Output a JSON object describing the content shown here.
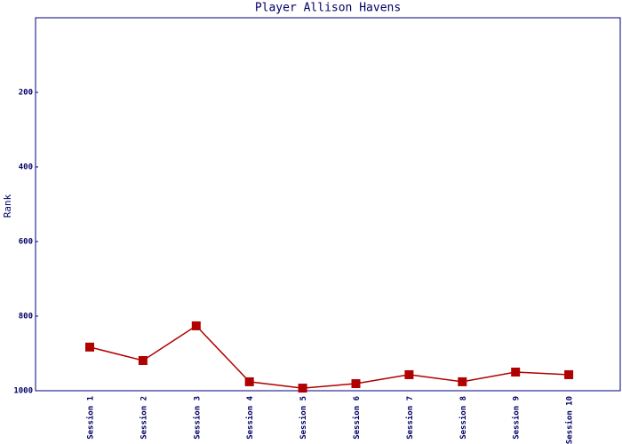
{
  "chart_data": {
    "type": "line",
    "title": "Player Allison Havens",
    "y_label": "Rank",
    "categories": [
      "Session 1",
      "Session 2",
      "Session 3",
      "Session 4",
      "Session 5",
      "Session 6",
      "Session 7",
      "Session 8",
      "Session 9",
      "Session 10"
    ],
    "series": [
      {
        "name": "Rank",
        "color": "#b00000",
        "values": [
          883,
          919,
          826,
          976,
          993,
          981,
          957,
          976,
          950,
          957
        ]
      }
    ],
    "ylim": [
      1000,
      0
    ],
    "yticks": [
      200,
      400,
      600,
      800,
      1000
    ],
    "grid": false
  }
}
